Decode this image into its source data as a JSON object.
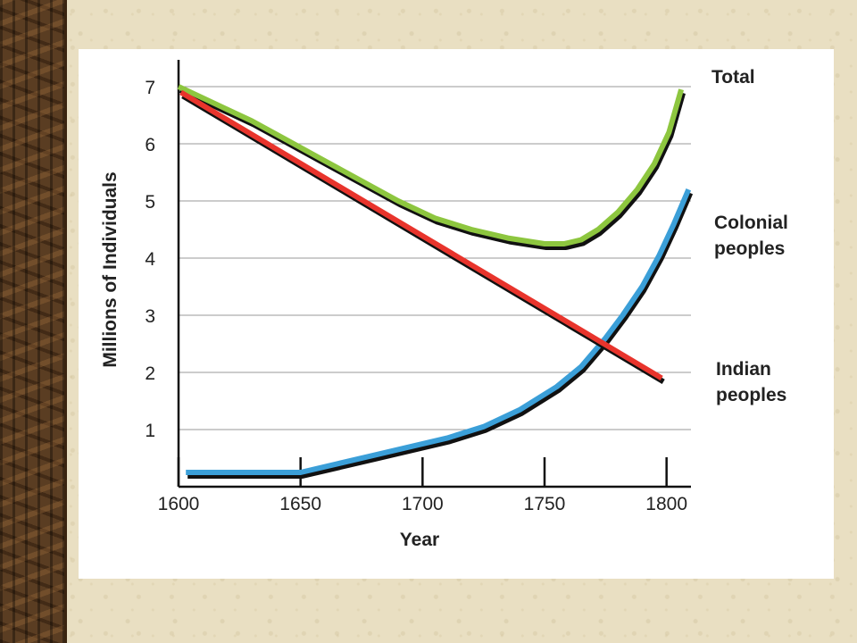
{
  "slide": {
    "background_color": "#e9dfc2",
    "sidebar_texture": "bark"
  },
  "chart_data": {
    "type": "line",
    "xlabel": "Year",
    "ylabel": "Millions of Individuals",
    "xlim": [
      1600,
      1810
    ],
    "ylim": [
      0,
      7.3
    ],
    "x_ticks": [
      "1600",
      "1650",
      "1700",
      "1750",
      "1800"
    ],
    "y_ticks": [
      "1",
      "2",
      "3",
      "4",
      "5",
      "6",
      "7"
    ],
    "grid": "horizontal",
    "series": [
      {
        "name": "Total",
        "color": "#8dc63f",
        "x": [
          1600,
          1615,
          1630,
          1645,
          1660,
          1675,
          1690,
          1705,
          1720,
          1735,
          1750,
          1758,
          1765,
          1772,
          1780,
          1788,
          1795,
          1801,
          1806
        ],
        "y": [
          7.0,
          6.7,
          6.4,
          6.05,
          5.7,
          5.35,
          5.0,
          4.7,
          4.5,
          4.35,
          4.25,
          4.25,
          4.32,
          4.5,
          4.8,
          5.2,
          5.65,
          6.2,
          6.95
        ]
      },
      {
        "name": "Colonial peoples",
        "color": "#3b9fd8",
        "x": [
          1603,
          1650,
          1665,
          1680,
          1695,
          1710,
          1725,
          1740,
          1755,
          1765,
          1775,
          1782,
          1790,
          1797,
          1803,
          1809
        ],
        "y": [
          0.25,
          0.25,
          0.4,
          0.55,
          0.7,
          0.85,
          1.05,
          1.35,
          1.75,
          2.1,
          2.6,
          3.0,
          3.5,
          4.05,
          4.6,
          5.2
        ]
      },
      {
        "name": "Indian peoples",
        "color": "#e8342c",
        "x": [
          1601,
          1798
        ],
        "y": [
          6.9,
          1.9
        ]
      }
    ],
    "labels": {
      "total": "Total",
      "colonial_1": "Colonial",
      "colonial_2": "peoples",
      "indian_1": "Indian",
      "indian_2": "peoples"
    }
  }
}
